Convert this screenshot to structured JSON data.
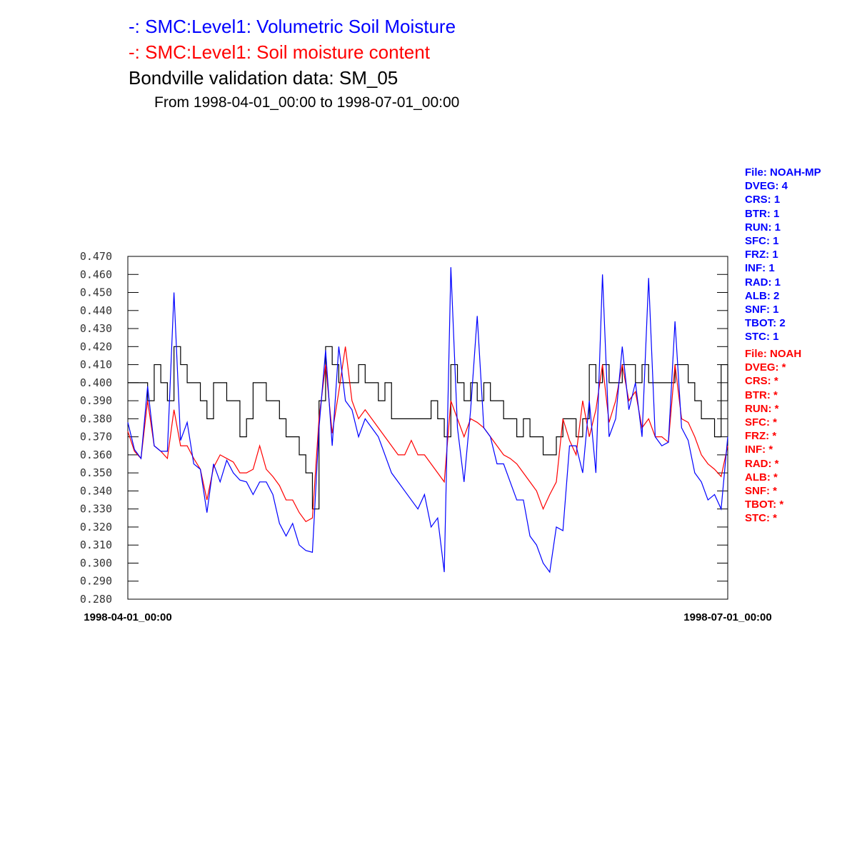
{
  "titles": {
    "line1": "-:  SMC:Level1: Volumetric Soil Moisture",
    "line2": "-:  SMC:Level1: Soil moisture content",
    "line3": "Bondville validation data:  SM_05",
    "line4": "From 1998-04-01_00:00 to 1998-07-01_00:00"
  },
  "legend_blue": [
    "File: NOAH-MP",
    "DVEG: 4",
    "CRS: 1",
    "BTR: 1",
    "RUN: 1",
    "SFC: 1",
    "FRZ: 1",
    "INF: 1",
    "RAD: 1",
    "ALB: 2",
    "SNF: 1",
    "TBOT: 2",
    "STC: 1"
  ],
  "legend_red": [
    "File: NOAH",
    "DVEG: *",
    "CRS: *",
    "BTR: *",
    "RUN: *",
    "SFC: *",
    "FRZ: *",
    "INF: *",
    "RAD: *",
    "ALB: *",
    "SNF: *",
    "TBOT: *",
    "STC: *"
  ],
  "chart_data": {
    "type": "line",
    "title": "Bondville validation data:  SM_05",
    "subtitle": "From 1998-04-01_00:00 to 1998-07-01_00:00",
    "xlabel": "",
    "ylabel": "",
    "x_unit": "days since 1998-04-01_00:00",
    "xlim": [
      0,
      91
    ],
    "x_tick_labels": [
      "1998-04-01_00:00",
      "1998-07-01_00:00"
    ],
    "ylim": [
      0.28,
      0.47
    ],
    "y_ticks": [
      "0.280",
      "0.290",
      "0.300",
      "0.310",
      "0.320",
      "0.330",
      "0.340",
      "0.350",
      "0.360",
      "0.370",
      "0.380",
      "0.390",
      "0.400",
      "0.410",
      "0.420",
      "0.430",
      "0.440",
      "0.450",
      "0.460",
      "0.470"
    ],
    "grid": false,
    "series": [
      {
        "name": "NOAH-MP SMC:Level1 Volumetric Soil Moisture",
        "color": "#0000ff",
        "step": false,
        "values": [
          0.378,
          0.363,
          0.358,
          0.398,
          0.365,
          0.362,
          0.362,
          0.45,
          0.368,
          0.378,
          0.355,
          0.352,
          0.328,
          0.355,
          0.345,
          0.357,
          0.35,
          0.346,
          0.345,
          0.338,
          0.345,
          0.345,
          0.338,
          0.322,
          0.315,
          0.322,
          0.31,
          0.307,
          0.306,
          0.375,
          0.418,
          0.365,
          0.42,
          0.39,
          0.385,
          0.37,
          0.38,
          0.375,
          0.37,
          0.36,
          0.35,
          0.345,
          0.34,
          0.335,
          0.33,
          0.338,
          0.32,
          0.325,
          0.295,
          0.464,
          0.375,
          0.345,
          0.385,
          0.437,
          0.375,
          0.37,
          0.355,
          0.355,
          0.345,
          0.335,
          0.335,
          0.315,
          0.31,
          0.3,
          0.295,
          0.32,
          0.318,
          0.365,
          0.365,
          0.35,
          0.39,
          0.35,
          0.46,
          0.37,
          0.38,
          0.42,
          0.385,
          0.4,
          0.37,
          0.458,
          0.37,
          0.365,
          0.367,
          0.434,
          0.375,
          0.368,
          0.35,
          0.345,
          0.335,
          0.338,
          0.33,
          0.37
        ]
      },
      {
        "name": "NOAH SMC:Level1 Soil moisture content",
        "color": "#ff0000",
        "step": false,
        "values": [
          0.373,
          0.362,
          0.358,
          0.39,
          0.365,
          0.362,
          0.358,
          0.385,
          0.365,
          0.365,
          0.358,
          0.352,
          0.335,
          0.353,
          0.36,
          0.358,
          0.356,
          0.35,
          0.35,
          0.352,
          0.365,
          0.352,
          0.348,
          0.343,
          0.335,
          0.335,
          0.328,
          0.323,
          0.325,
          0.38,
          0.41,
          0.372,
          0.395,
          0.42,
          0.39,
          0.38,
          0.385,
          0.38,
          0.375,
          0.37,
          0.365,
          0.36,
          0.36,
          0.368,
          0.36,
          0.36,
          0.355,
          0.35,
          0.345,
          0.39,
          0.38,
          0.37,
          0.38,
          0.378,
          0.375,
          0.37,
          0.365,
          0.36,
          0.358,
          0.355,
          0.35,
          0.345,
          0.34,
          0.33,
          0.338,
          0.345,
          0.38,
          0.368,
          0.36,
          0.39,
          0.37,
          0.385,
          0.41,
          0.378,
          0.39,
          0.41,
          0.39,
          0.395,
          0.375,
          0.38,
          0.37,
          0.37,
          0.367,
          0.41,
          0.38,
          0.378,
          0.37,
          0.36,
          0.355,
          0.352,
          0.348,
          0.365
        ]
      },
      {
        "name": "Bondville validation data SM_05",
        "color": "#000000",
        "step": true,
        "values": [
          0.4,
          0.4,
          0.4,
          0.39,
          0.41,
          0.4,
          0.39,
          0.42,
          0.41,
          0.4,
          0.4,
          0.39,
          0.38,
          0.4,
          0.4,
          0.39,
          0.39,
          0.37,
          0.38,
          0.4,
          0.4,
          0.39,
          0.39,
          0.38,
          0.37,
          0.37,
          0.36,
          0.35,
          0.33,
          0.39,
          0.42,
          0.41,
          0.4,
          0.4,
          0.4,
          0.41,
          0.4,
          0.4,
          0.39,
          0.4,
          0.38,
          0.38,
          0.38,
          0.38,
          0.38,
          0.38,
          0.39,
          0.38,
          0.37,
          0.41,
          0.4,
          0.39,
          0.4,
          0.39,
          0.4,
          0.39,
          0.39,
          0.38,
          0.38,
          0.37,
          0.38,
          0.37,
          0.37,
          0.36,
          0.36,
          0.37,
          0.38,
          0.38,
          0.37,
          0.38,
          0.41,
          0.4,
          0.41,
          0.4,
          0.4,
          0.41,
          0.41,
          0.4,
          0.41,
          0.4,
          0.4,
          0.4,
          0.4,
          0.41,
          0.41,
          0.4,
          0.39,
          0.38,
          0.38,
          0.37,
          0.41,
          0.39
        ]
      }
    ]
  }
}
